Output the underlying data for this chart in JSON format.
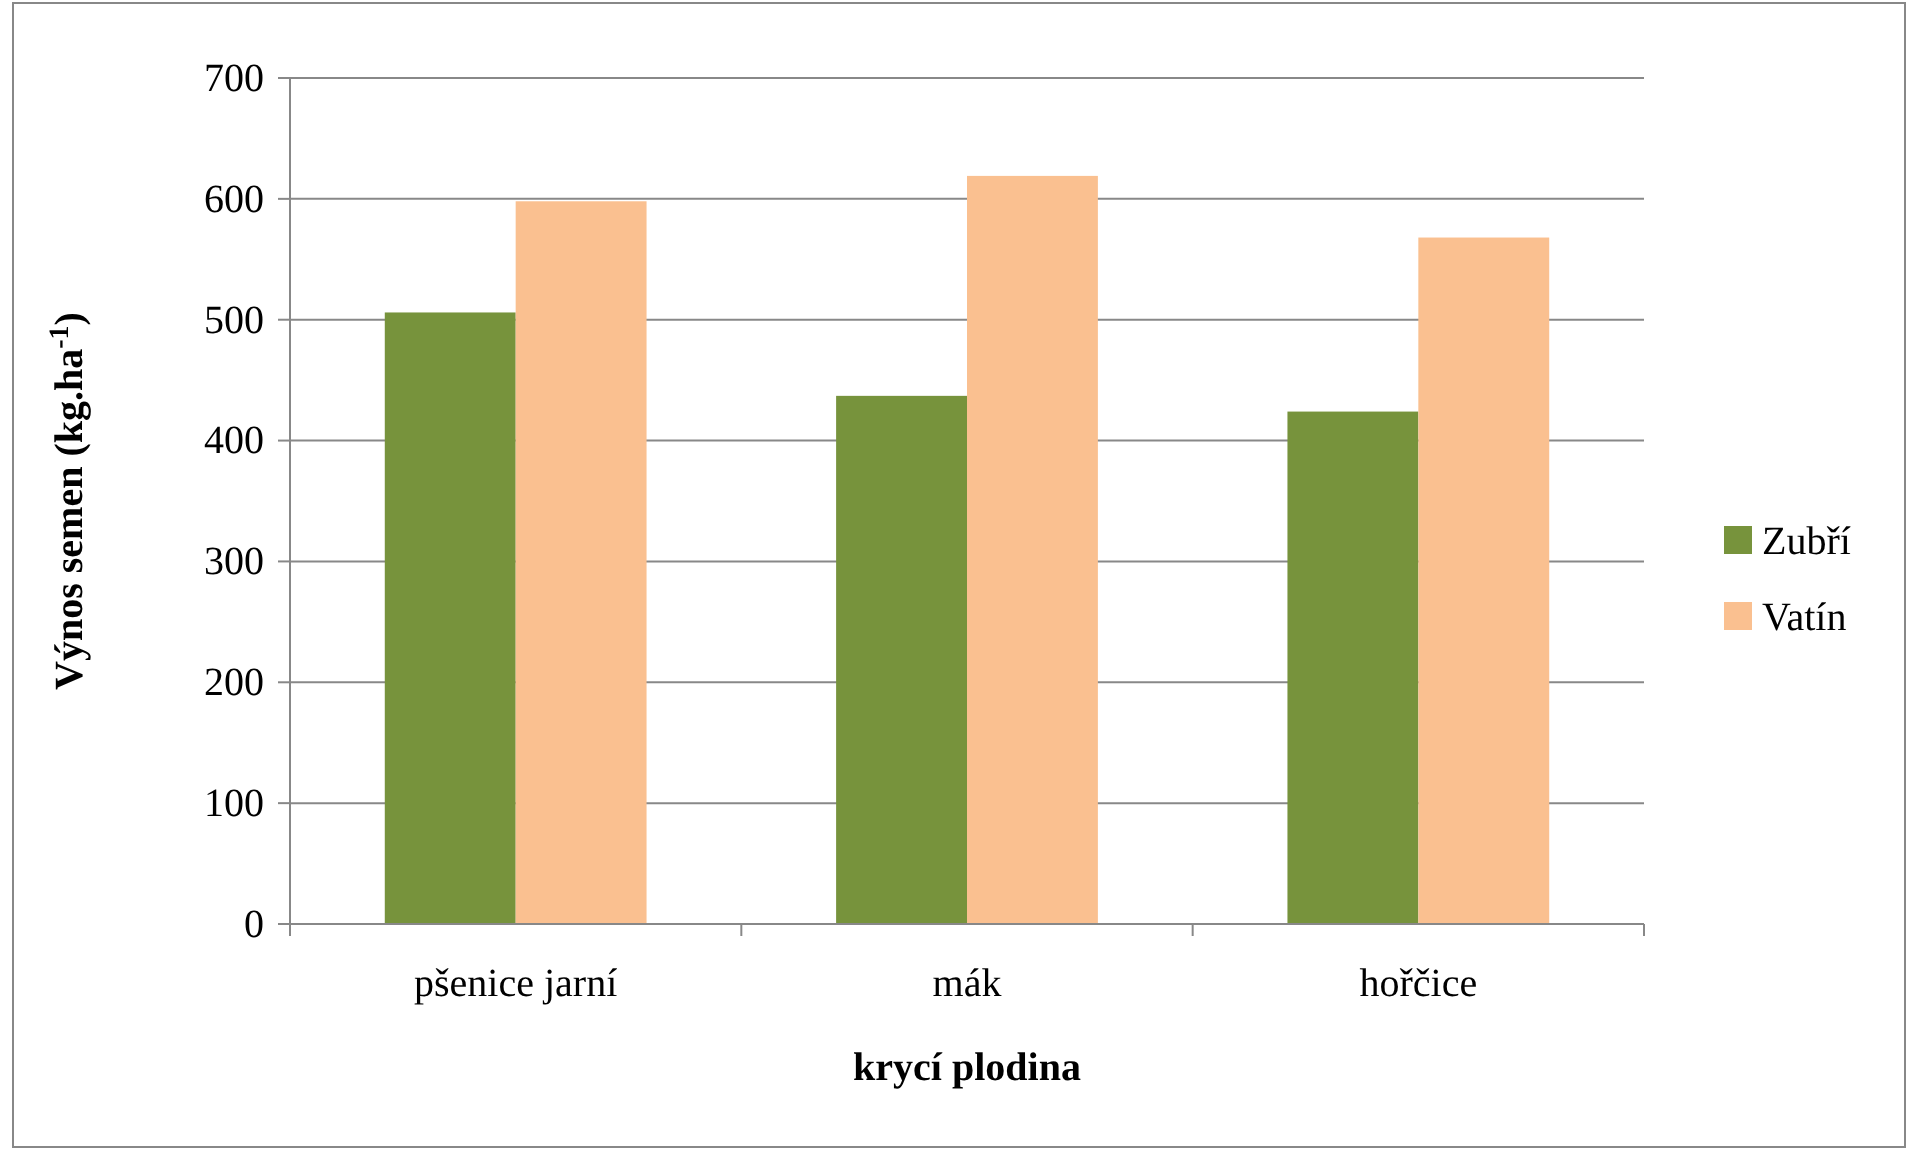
{
  "chart_data": {
    "type": "bar",
    "categories": [
      "pšenice jarní",
      "mák",
      "hořčice"
    ],
    "series": [
      {
        "name": "Zubří",
        "color": "#77933c",
        "values": [
          506,
          437,
          424
        ]
      },
      {
        "name": "Vatín",
        "color": "#fac090",
        "values": [
          598,
          619,
          568
        ]
      }
    ],
    "xlabel": "krycí plodina",
    "ylabel": "Výnos semen (kg.ha$^{-1}$)",
    "ylim": [
      0,
      700
    ],
    "yticks": [
      0,
      100,
      200,
      300,
      400,
      500,
      600,
      700
    ],
    "grid": "y",
    "legend": "right"
  }
}
